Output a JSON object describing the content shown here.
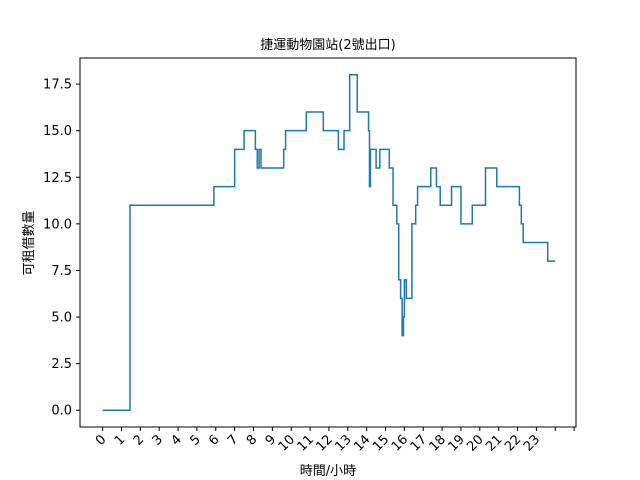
{
  "chart_data": {
    "type": "line",
    "title": "捷運動物園站(2號出口)",
    "xlabel": "時間/小時",
    "ylabel": "可租借數量",
    "xlim": [
      -1.2,
      25.1
    ],
    "ylim": [
      -0.9,
      18.9
    ],
    "grid": false,
    "line_color": "#1f77b4",
    "x_tick_labels": [
      "0",
      "1",
      "2",
      "3",
      "4",
      "5",
      "6",
      "7",
      "8",
      "9",
      "10",
      "11",
      "12",
      "13",
      "14",
      "15",
      "16",
      "17",
      "18",
      "19",
      "20",
      "21",
      "22",
      "23"
    ],
    "y_tick_labels": [
      "0.0",
      "2.5",
      "5.0",
      "7.5",
      "10.0",
      "12.5",
      "15.0",
      "17.5"
    ],
    "y_ticks": [
      0,
      2.5,
      5,
      7.5,
      10,
      12.5,
      15,
      17.5
    ],
    "series": [
      {
        "x": [
          0,
          1.45,
          1.45,
          5.9,
          5.9,
          7.0,
          7.0,
          7.5,
          7.5,
          8.1,
          8.1,
          8.2,
          8.2,
          8.3,
          8.3,
          8.4,
          8.4,
          9.6,
          9.6,
          9.7,
          9.7,
          10.8,
          10.8,
          11.7,
          11.7,
          12.5,
          12.5,
          12.8,
          12.8,
          13.1,
          13.1,
          13.5,
          13.5,
          14.1,
          14.1,
          14.15,
          14.15,
          14.2,
          14.2,
          14.5,
          14.5,
          14.7,
          14.7,
          15.2,
          15.2,
          15.4,
          15.4,
          15.6,
          15.6,
          15.7,
          15.7,
          15.8,
          15.8,
          15.88,
          15.88,
          15.95,
          15.95,
          16.0,
          16.0,
          16.1,
          16.1,
          16.4,
          16.4,
          16.6,
          16.6,
          16.7,
          16.7,
          17.4,
          17.4,
          17.7,
          17.7,
          17.9,
          17.9,
          18.5,
          18.5,
          19.0,
          19.0,
          19.6,
          19.6,
          20.3,
          20.3,
          20.9,
          20.9,
          22.1,
          22.1,
          22.2,
          22.2,
          22.3,
          22.3,
          23.6,
          23.6,
          24.0
        ],
        "y": [
          0,
          0,
          11,
          11,
          12,
          12,
          14,
          14,
          15,
          15,
          14,
          14,
          13,
          13,
          14,
          14,
          13,
          13,
          14,
          14,
          15,
          15,
          16,
          16,
          15,
          15,
          14,
          14,
          15,
          15,
          18,
          18,
          16,
          16,
          15,
          15,
          12,
          12,
          14,
          14,
          13,
          13,
          14,
          14,
          13,
          13,
          11,
          11,
          10,
          10,
          7,
          7,
          6,
          6,
          4,
          4,
          5,
          5,
          7,
          7,
          6,
          6,
          10,
          10,
          11,
          11,
          12,
          12,
          13,
          13,
          12,
          12,
          11,
          11,
          12,
          12,
          10,
          10,
          11,
          11,
          13,
          13,
          12,
          12,
          11,
          11,
          10,
          10,
          9,
          9,
          8,
          8
        ]
      }
    ]
  }
}
